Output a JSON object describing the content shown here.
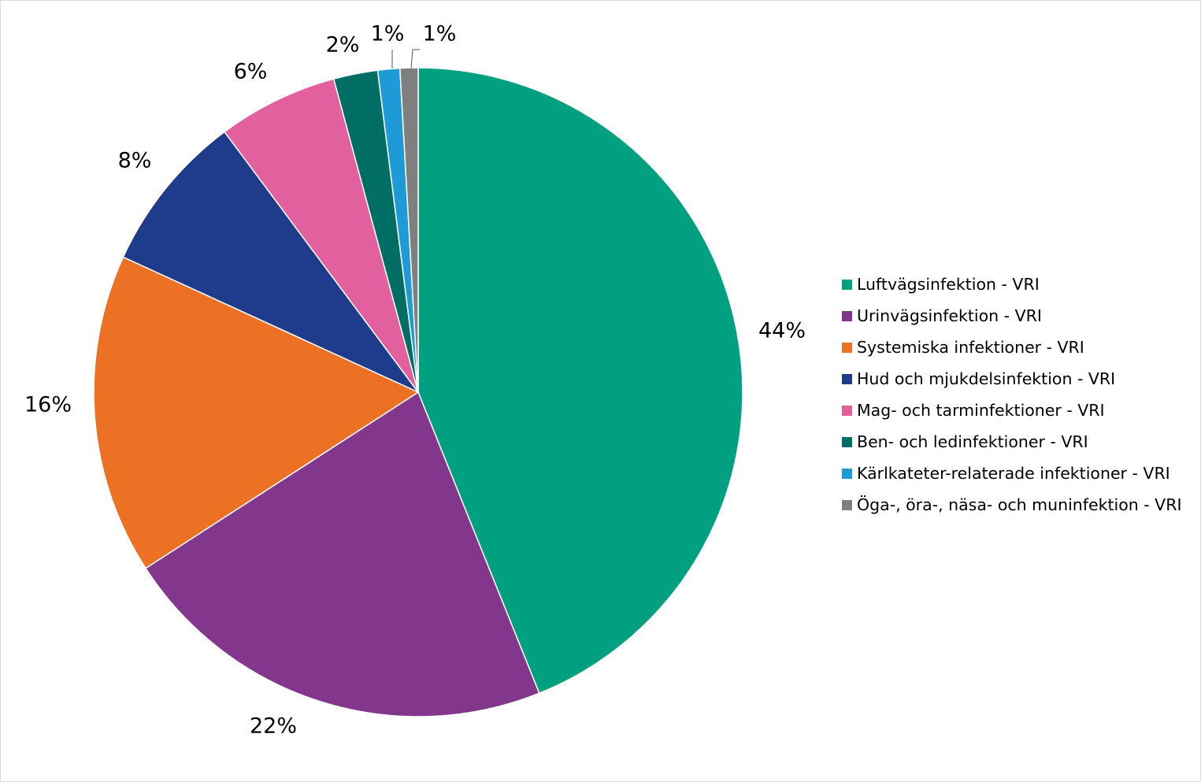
{
  "chart_data": {
    "type": "pie",
    "title": "",
    "series": [
      {
        "name": "Luftvägsinfektion - VRI",
        "value": 44,
        "label": "44%",
        "color": "#00a080"
      },
      {
        "name": "Urinvägsinfektion - VRI",
        "value": 22,
        "label": "22%",
        "color": "#82368c"
      },
      {
        "name": "Systemiska infektioner - VRI",
        "value": 16,
        "label": "16%",
        "color": "#ed7125"
      },
      {
        "name": "Hud och mjukdelsinfektion - VRI",
        "value": 8,
        "label": "8%",
        "color": "#1f3c8c"
      },
      {
        "name": "Mag- och tarminfektioner - VRI",
        "value": 6,
        "label": "6%",
        "color": "#e3609f"
      },
      {
        "name": "Ben- och ledinfektioner - VRI",
        "value": 2.2,
        "label": "2%",
        "color": "#006e64"
      },
      {
        "name": "Kärlkateter-relaterade infektioner - VRI",
        "value": 1.1,
        "label": "1%",
        "color": "#1e9bd7"
      },
      {
        "name": "Öga-, öra-, näsa- och muninfektion - VRI",
        "value": 0.9,
        "label": "1%",
        "color": "#7f7f7f"
      }
    ],
    "legend_position": "right",
    "start_angle": "12 o'clock",
    "direction": "clockwise"
  }
}
